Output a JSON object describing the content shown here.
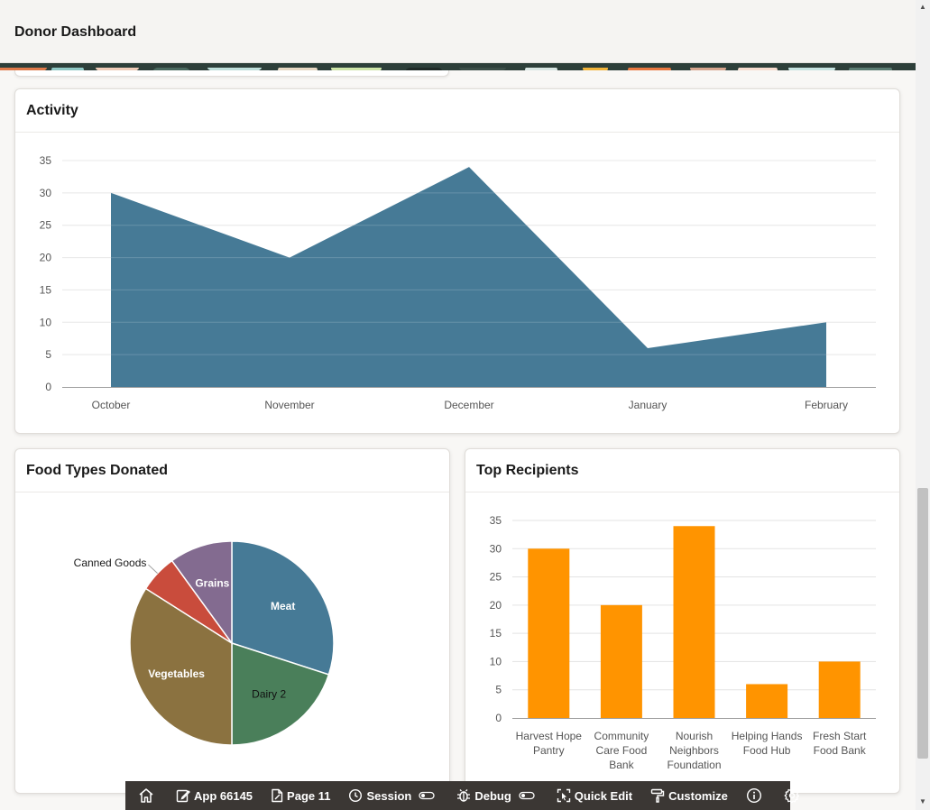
{
  "header": {
    "title": "Donor Dashboard"
  },
  "activity": {
    "title": "Activity",
    "chart_data": {
      "type": "area",
      "categories": [
        "October",
        "November",
        "December",
        "January",
        "February"
      ],
      "values": [
        30,
        20,
        34,
        6,
        10
      ],
      "ylim": [
        0,
        35
      ],
      "yticks": [
        0,
        5,
        10,
        15,
        20,
        25,
        30,
        35
      ],
      "grid": true,
      "color": "#467a96"
    }
  },
  "food_types": {
    "title": "Food Types Donated",
    "chart_data": {
      "type": "pie",
      "slices": [
        {
          "label": "Meat",
          "value": 30,
          "color": "#467a96"
        },
        {
          "label": "Dairy 2",
          "value": 20,
          "color": "#4a7f5a"
        },
        {
          "label": "Vegetables",
          "value": 34,
          "color": "#8b7240"
        },
        {
          "label": "Canned Goods",
          "value": 6,
          "color": "#c94c3c"
        },
        {
          "label": "Grains",
          "value": 10,
          "color": "#836b90"
        }
      ]
    }
  },
  "top_recipients": {
    "title": "Top Recipients",
    "chart_data": {
      "type": "bar",
      "categories": [
        [
          "Harvest Hope",
          "Pantry"
        ],
        [
          "Community",
          "Care Food",
          "Bank"
        ],
        [
          "Nourish",
          "Neighbors",
          "Foundation"
        ],
        [
          "Helping Hands",
          "Food Hub"
        ],
        [
          "Fresh Start",
          "Food Bank"
        ]
      ],
      "values": [
        30,
        20,
        34,
        6,
        10
      ],
      "ylim": [
        0,
        35
      ],
      "yticks": [
        0,
        5,
        10,
        15,
        20,
        25,
        30,
        35
      ],
      "grid": true,
      "color": "#ff9400"
    }
  },
  "devbar": {
    "home_icon": "home-icon",
    "app_label": "App 66145",
    "page_label": "Page 11",
    "session_label": "Session",
    "debug_label": "Debug",
    "quick_edit_label": "Quick Edit",
    "customize_label": "Customize"
  }
}
